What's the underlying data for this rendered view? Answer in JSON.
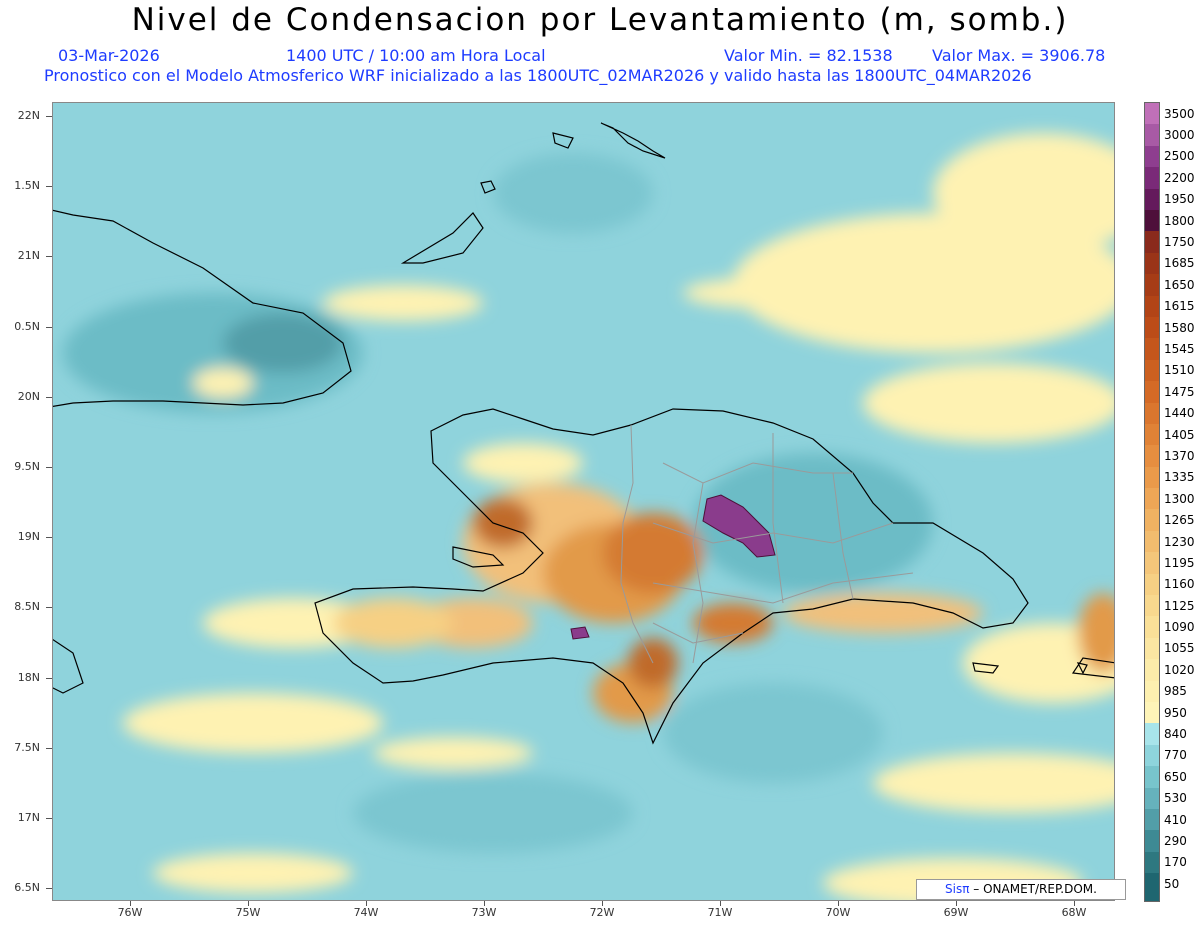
{
  "header": {
    "title": "Nivel de Condensacion por Levantamiento (m, somb.)",
    "date": "03-Mar-2026",
    "time": "1400 UTC / 10:00 am Hora Local",
    "value_min": "Valor Min. = 82.1538",
    "value_max": "Valor Max. = 3906.78",
    "model_line": "Pronostico con el Modelo Atmosferico WRF inicializado a las 1800UTC_02MAR2026 y valido hasta las  1800UTC_04MAR2026"
  },
  "axes": {
    "lat_labels": [
      "22N",
      "1.5N",
      "21N",
      "0.5N",
      "20N",
      "9.5N",
      "19N",
      "8.5N",
      "18N",
      "7.5N",
      "17N",
      "6.5N"
    ],
    "lon_labels": [
      "76W",
      "75W",
      "74W",
      "73W",
      "72W",
      "71W",
      "70W",
      "69W",
      "68W"
    ]
  },
  "legend": {
    "levels": [
      "3500",
      "3000",
      "2500",
      "2200",
      "1950",
      "1800",
      "1750",
      "1685",
      "1650",
      "1615",
      "1580",
      "1545",
      "1510",
      "1475",
      "1440",
      "1405",
      "1370",
      "1335",
      "1300",
      "1265",
      "1230",
      "1195",
      "1160",
      "1125",
      "1090",
      "1055",
      "1020",
      "985",
      "950",
      "840",
      "770",
      "650",
      "530",
      "410",
      "290",
      "170",
      "50"
    ],
    "colors": [
      "#c070b8",
      "#a85aa5",
      "#8e3e8f",
      "#7a2a78",
      "#641a5c",
      "#4e0f3a",
      "#8a2a1c",
      "#9a3418",
      "#a63c16",
      "#b24416",
      "#bc4c18",
      "#c4561c",
      "#cc6020",
      "#d46a26",
      "#da762e",
      "#e08236",
      "#e68e40",
      "#ea9a4a",
      "#eea656",
      "#f0b262",
      "#f2bc6e",
      "#f4c67a",
      "#f6d084",
      "#f8d88e",
      "#fae098",
      "#fbe6a2",
      "#fcecaa",
      "#fdf0b0",
      "#fef4b8",
      "#a8e4ea",
      "#8ed4dc",
      "#78c4cc",
      "#66b2bc",
      "#529ea8",
      "#3e8a94",
      "#2e7880",
      "#1f6670"
    ]
  },
  "credit": {
    "sis": "Sisπ",
    "text": "– ONAMET/REP.DOM."
  },
  "colors": {
    "sea": "#8fd3dc",
    "sea_dark": "#6cbcc6",
    "yellow": "#fef2b2",
    "orange": "#e29a4a",
    "brown": "#c06a2a",
    "purple": "#8a3c8c"
  }
}
